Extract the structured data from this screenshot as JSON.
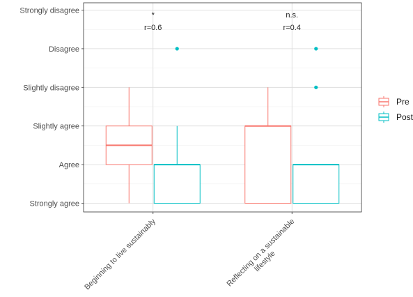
{
  "chart_data": {
    "type": "boxplot",
    "y_levels": [
      "Strongly agree",
      "Agree",
      "Slightly agree",
      "Slightly disagree",
      "Disagree",
      "Strongly disagree"
    ],
    "ylim": [
      1,
      6
    ],
    "categories": [
      "Beginning to live sustainably",
      "Reflecting on a sustainable lifestyle"
    ],
    "series": [
      {
        "name": "Pre",
        "color": "#F8766D",
        "boxes": [
          {
            "category": "Beginning to live sustainably",
            "min": 1,
            "q1": 2,
            "median": 2.5,
            "q3": 3,
            "max": 4,
            "outliers": []
          },
          {
            "category": "Reflecting on a sustainable lifestyle",
            "min": 1,
            "q1": 1,
            "median": 3,
            "q3": 3,
            "max": 4,
            "outliers": []
          }
        ]
      },
      {
        "name": "Post",
        "color": "#00BFC4",
        "boxes": [
          {
            "category": "Beginning to live sustainably",
            "min": 1,
            "q1": 1,
            "median": 2,
            "q3": 2,
            "max": 3,
            "outliers": [
              5
            ]
          },
          {
            "category": "Reflecting on a sustainable lifestyle",
            "min": 1,
            "q1": 1,
            "median": 2,
            "q3": 2,
            "max": 2,
            "outliers": [
              4,
              5
            ]
          }
        ]
      }
    ],
    "annotations": [
      {
        "category": "Beginning to live sustainably",
        "significance": "*",
        "effect": "r=0.6"
      },
      {
        "category": "Reflecting on a sustainable lifestyle",
        "significance": "n.s.",
        "effect": "r=0.4"
      }
    ],
    "legend": {
      "position": "right",
      "entries": [
        "Pre",
        "Post"
      ]
    },
    "grid": true,
    "xlabel": "",
    "ylabel": ""
  }
}
